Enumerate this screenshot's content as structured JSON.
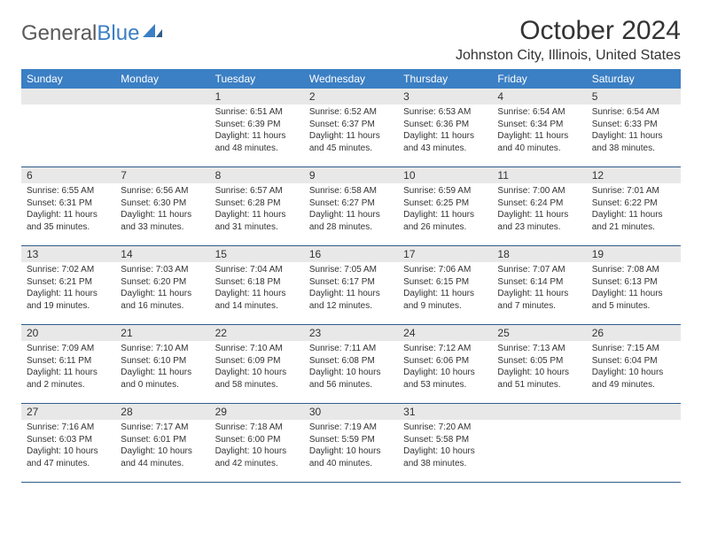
{
  "logo": {
    "text1": "General",
    "text2": "Blue"
  },
  "title": "October 2024",
  "location": "Johnston City, Illinois, United States",
  "colors": {
    "header_bg": "#3b7fc4",
    "header_text": "#ffffff",
    "daynum_bg": "#e8e8e8",
    "border": "#2f5d8a",
    "text": "#333333",
    "logo_gray": "#5a5a5a",
    "logo_blue": "#3b7fc4"
  },
  "day_labels": [
    "Sunday",
    "Monday",
    "Tuesday",
    "Wednesday",
    "Thursday",
    "Friday",
    "Saturday"
  ],
  "weeks": [
    [
      {
        "n": "",
        "sr": "",
        "ss": "",
        "dl": ""
      },
      {
        "n": "",
        "sr": "",
        "ss": "",
        "dl": ""
      },
      {
        "n": "1",
        "sr": "Sunrise: 6:51 AM",
        "ss": "Sunset: 6:39 PM",
        "dl": "Daylight: 11 hours and 48 minutes."
      },
      {
        "n": "2",
        "sr": "Sunrise: 6:52 AM",
        "ss": "Sunset: 6:37 PM",
        "dl": "Daylight: 11 hours and 45 minutes."
      },
      {
        "n": "3",
        "sr": "Sunrise: 6:53 AM",
        "ss": "Sunset: 6:36 PM",
        "dl": "Daylight: 11 hours and 43 minutes."
      },
      {
        "n": "4",
        "sr": "Sunrise: 6:54 AM",
        "ss": "Sunset: 6:34 PM",
        "dl": "Daylight: 11 hours and 40 minutes."
      },
      {
        "n": "5",
        "sr": "Sunrise: 6:54 AM",
        "ss": "Sunset: 6:33 PM",
        "dl": "Daylight: 11 hours and 38 minutes."
      }
    ],
    [
      {
        "n": "6",
        "sr": "Sunrise: 6:55 AM",
        "ss": "Sunset: 6:31 PM",
        "dl": "Daylight: 11 hours and 35 minutes."
      },
      {
        "n": "7",
        "sr": "Sunrise: 6:56 AM",
        "ss": "Sunset: 6:30 PM",
        "dl": "Daylight: 11 hours and 33 minutes."
      },
      {
        "n": "8",
        "sr": "Sunrise: 6:57 AM",
        "ss": "Sunset: 6:28 PM",
        "dl": "Daylight: 11 hours and 31 minutes."
      },
      {
        "n": "9",
        "sr": "Sunrise: 6:58 AM",
        "ss": "Sunset: 6:27 PM",
        "dl": "Daylight: 11 hours and 28 minutes."
      },
      {
        "n": "10",
        "sr": "Sunrise: 6:59 AM",
        "ss": "Sunset: 6:25 PM",
        "dl": "Daylight: 11 hours and 26 minutes."
      },
      {
        "n": "11",
        "sr": "Sunrise: 7:00 AM",
        "ss": "Sunset: 6:24 PM",
        "dl": "Daylight: 11 hours and 23 minutes."
      },
      {
        "n": "12",
        "sr": "Sunrise: 7:01 AM",
        "ss": "Sunset: 6:22 PM",
        "dl": "Daylight: 11 hours and 21 minutes."
      }
    ],
    [
      {
        "n": "13",
        "sr": "Sunrise: 7:02 AM",
        "ss": "Sunset: 6:21 PM",
        "dl": "Daylight: 11 hours and 19 minutes."
      },
      {
        "n": "14",
        "sr": "Sunrise: 7:03 AM",
        "ss": "Sunset: 6:20 PM",
        "dl": "Daylight: 11 hours and 16 minutes."
      },
      {
        "n": "15",
        "sr": "Sunrise: 7:04 AM",
        "ss": "Sunset: 6:18 PM",
        "dl": "Daylight: 11 hours and 14 minutes."
      },
      {
        "n": "16",
        "sr": "Sunrise: 7:05 AM",
        "ss": "Sunset: 6:17 PM",
        "dl": "Daylight: 11 hours and 12 minutes."
      },
      {
        "n": "17",
        "sr": "Sunrise: 7:06 AM",
        "ss": "Sunset: 6:15 PM",
        "dl": "Daylight: 11 hours and 9 minutes."
      },
      {
        "n": "18",
        "sr": "Sunrise: 7:07 AM",
        "ss": "Sunset: 6:14 PM",
        "dl": "Daylight: 11 hours and 7 minutes."
      },
      {
        "n": "19",
        "sr": "Sunrise: 7:08 AM",
        "ss": "Sunset: 6:13 PM",
        "dl": "Daylight: 11 hours and 5 minutes."
      }
    ],
    [
      {
        "n": "20",
        "sr": "Sunrise: 7:09 AM",
        "ss": "Sunset: 6:11 PM",
        "dl": "Daylight: 11 hours and 2 minutes."
      },
      {
        "n": "21",
        "sr": "Sunrise: 7:10 AM",
        "ss": "Sunset: 6:10 PM",
        "dl": "Daylight: 11 hours and 0 minutes."
      },
      {
        "n": "22",
        "sr": "Sunrise: 7:10 AM",
        "ss": "Sunset: 6:09 PM",
        "dl": "Daylight: 10 hours and 58 minutes."
      },
      {
        "n": "23",
        "sr": "Sunrise: 7:11 AM",
        "ss": "Sunset: 6:08 PM",
        "dl": "Daylight: 10 hours and 56 minutes."
      },
      {
        "n": "24",
        "sr": "Sunrise: 7:12 AM",
        "ss": "Sunset: 6:06 PM",
        "dl": "Daylight: 10 hours and 53 minutes."
      },
      {
        "n": "25",
        "sr": "Sunrise: 7:13 AM",
        "ss": "Sunset: 6:05 PM",
        "dl": "Daylight: 10 hours and 51 minutes."
      },
      {
        "n": "26",
        "sr": "Sunrise: 7:15 AM",
        "ss": "Sunset: 6:04 PM",
        "dl": "Daylight: 10 hours and 49 minutes."
      }
    ],
    [
      {
        "n": "27",
        "sr": "Sunrise: 7:16 AM",
        "ss": "Sunset: 6:03 PM",
        "dl": "Daylight: 10 hours and 47 minutes."
      },
      {
        "n": "28",
        "sr": "Sunrise: 7:17 AM",
        "ss": "Sunset: 6:01 PM",
        "dl": "Daylight: 10 hours and 44 minutes."
      },
      {
        "n": "29",
        "sr": "Sunrise: 7:18 AM",
        "ss": "Sunset: 6:00 PM",
        "dl": "Daylight: 10 hours and 42 minutes."
      },
      {
        "n": "30",
        "sr": "Sunrise: 7:19 AM",
        "ss": "Sunset: 5:59 PM",
        "dl": "Daylight: 10 hours and 40 minutes."
      },
      {
        "n": "31",
        "sr": "Sunrise: 7:20 AM",
        "ss": "Sunset: 5:58 PM",
        "dl": "Daylight: 10 hours and 38 minutes."
      },
      {
        "n": "",
        "sr": "",
        "ss": "",
        "dl": ""
      },
      {
        "n": "",
        "sr": "",
        "ss": "",
        "dl": ""
      }
    ]
  ]
}
